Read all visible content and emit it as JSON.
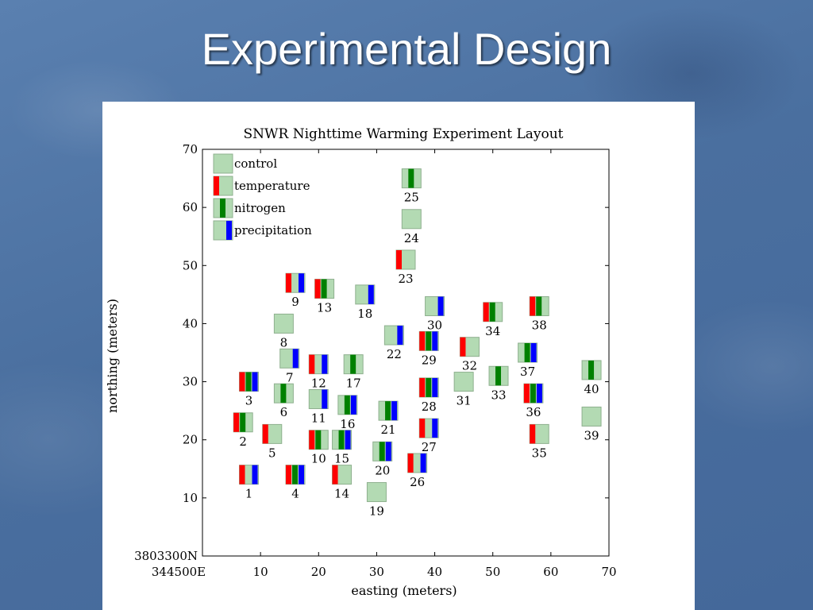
{
  "slide": {
    "title": "Experimental Design"
  },
  "colors": {
    "background": "#4d73a3",
    "control": "#b3dab3",
    "temperature": "#ff0000",
    "nitrogen": "#008000",
    "precipitation": "#0000ff"
  },
  "chart_data": {
    "type": "scatter",
    "title": "SNWR Nighttime Warming Experiment Layout",
    "xlabel": "easting (meters)",
    "ylabel": "northing (meters)",
    "xlim": [
      0,
      70
    ],
    "ylim": [
      0,
      70
    ],
    "x_ticks": [
      "344500E",
      "10",
      "20",
      "30",
      "40",
      "50",
      "60",
      "70"
    ],
    "y_ticks": [
      "3803300N",
      "10",
      "20",
      "30",
      "40",
      "50",
      "60",
      "70"
    ],
    "grid": false,
    "legend": {
      "position": "top-left",
      "entries": [
        {
          "label": "control",
          "treatments": []
        },
        {
          "label": "temperature",
          "treatments": [
            "temperature"
          ]
        },
        {
          "label": "nitrogen",
          "treatments": [
            "nitrogen"
          ]
        },
        {
          "label": "precipitation",
          "treatments": [
            "precipitation"
          ]
        }
      ]
    },
    "plots": [
      {
        "id": "1",
        "x": 8,
        "y": 14,
        "treatments": [
          "temperature",
          "precipitation"
        ]
      },
      {
        "id": "2",
        "x": 7,
        "y": 23,
        "treatments": [
          "temperature",
          "nitrogen"
        ]
      },
      {
        "id": "3",
        "x": 8,
        "y": 30,
        "treatments": [
          "temperature",
          "nitrogen",
          "precipitation"
        ]
      },
      {
        "id": "4",
        "x": 16,
        "y": 14,
        "treatments": [
          "temperature",
          "nitrogen",
          "precipitation"
        ]
      },
      {
        "id": "5",
        "x": 12,
        "y": 21,
        "treatments": [
          "temperature"
        ]
      },
      {
        "id": "6",
        "x": 14,
        "y": 28,
        "treatments": [
          "nitrogen"
        ]
      },
      {
        "id": "7",
        "x": 15,
        "y": 34,
        "treatments": [
          "precipitation"
        ]
      },
      {
        "id": "8",
        "x": 14,
        "y": 40,
        "treatments": []
      },
      {
        "id": "9",
        "x": 16,
        "y": 47,
        "treatments": [
          "temperature",
          "precipitation"
        ]
      },
      {
        "id": "10",
        "x": 20,
        "y": 20,
        "treatments": [
          "temperature",
          "nitrogen"
        ]
      },
      {
        "id": "11",
        "x": 20,
        "y": 27,
        "treatments": [
          "precipitation"
        ]
      },
      {
        "id": "12",
        "x": 20,
        "y": 33,
        "treatments": [
          "temperature",
          "precipitation"
        ]
      },
      {
        "id": "13",
        "x": 21,
        "y": 46,
        "treatments": [
          "temperature",
          "nitrogen"
        ]
      },
      {
        "id": "14",
        "x": 24,
        "y": 14,
        "treatments": [
          "temperature"
        ]
      },
      {
        "id": "15",
        "x": 24,
        "y": 20,
        "treatments": [
          "nitrogen",
          "precipitation"
        ]
      },
      {
        "id": "16",
        "x": 25,
        "y": 26,
        "treatments": [
          "nitrogen",
          "precipitation"
        ]
      },
      {
        "id": "17",
        "x": 26,
        "y": 33,
        "treatments": [
          "nitrogen"
        ]
      },
      {
        "id": "18",
        "x": 28,
        "y": 45,
        "treatments": [
          "precipitation"
        ]
      },
      {
        "id": "19",
        "x": 30,
        "y": 11,
        "treatments": []
      },
      {
        "id": "20",
        "x": 31,
        "y": 18,
        "treatments": [
          "nitrogen",
          "precipitation"
        ]
      },
      {
        "id": "21",
        "x": 32,
        "y": 25,
        "treatments": [
          "nitrogen",
          "precipitation"
        ]
      },
      {
        "id": "22",
        "x": 33,
        "y": 38,
        "treatments": [
          "precipitation"
        ]
      },
      {
        "id": "23",
        "x": 35,
        "y": 51,
        "treatments": [
          "temperature"
        ]
      },
      {
        "id": "24",
        "x": 36,
        "y": 58,
        "treatments": []
      },
      {
        "id": "25",
        "x": 36,
        "y": 65,
        "treatments": [
          "nitrogen"
        ]
      },
      {
        "id": "26",
        "x": 37,
        "y": 16,
        "treatments": [
          "temperature",
          "precipitation"
        ]
      },
      {
        "id": "27",
        "x": 39,
        "y": 22,
        "treatments": [
          "temperature",
          "precipitation"
        ]
      },
      {
        "id": "28",
        "x": 39,
        "y": 29,
        "treatments": [
          "temperature",
          "nitrogen",
          "precipitation"
        ]
      },
      {
        "id": "29",
        "x": 39,
        "y": 37,
        "treatments": [
          "temperature",
          "nitrogen",
          "precipitation"
        ]
      },
      {
        "id": "30",
        "x": 40,
        "y": 43,
        "treatments": [
          "precipitation"
        ]
      },
      {
        "id": "31",
        "x": 45,
        "y": 30,
        "treatments": []
      },
      {
        "id": "32",
        "x": 46,
        "y": 36,
        "treatments": [
          "temperature"
        ]
      },
      {
        "id": "33",
        "x": 51,
        "y": 31,
        "treatments": [
          "nitrogen"
        ]
      },
      {
        "id": "34",
        "x": 50,
        "y": 42,
        "treatments": [
          "temperature",
          "nitrogen"
        ]
      },
      {
        "id": "35",
        "x": 58,
        "y": 21,
        "treatments": [
          "temperature"
        ]
      },
      {
        "id": "36",
        "x": 57,
        "y": 28,
        "treatments": [
          "temperature",
          "nitrogen",
          "precipitation"
        ]
      },
      {
        "id": "37",
        "x": 56,
        "y": 35,
        "treatments": [
          "nitrogen",
          "precipitation"
        ]
      },
      {
        "id": "38",
        "x": 58,
        "y": 43,
        "treatments": [
          "temperature",
          "nitrogen"
        ]
      },
      {
        "id": "39",
        "x": 67,
        "y": 24,
        "treatments": []
      },
      {
        "id": "40",
        "x": 67,
        "y": 32,
        "treatments": [
          "nitrogen"
        ]
      }
    ]
  }
}
